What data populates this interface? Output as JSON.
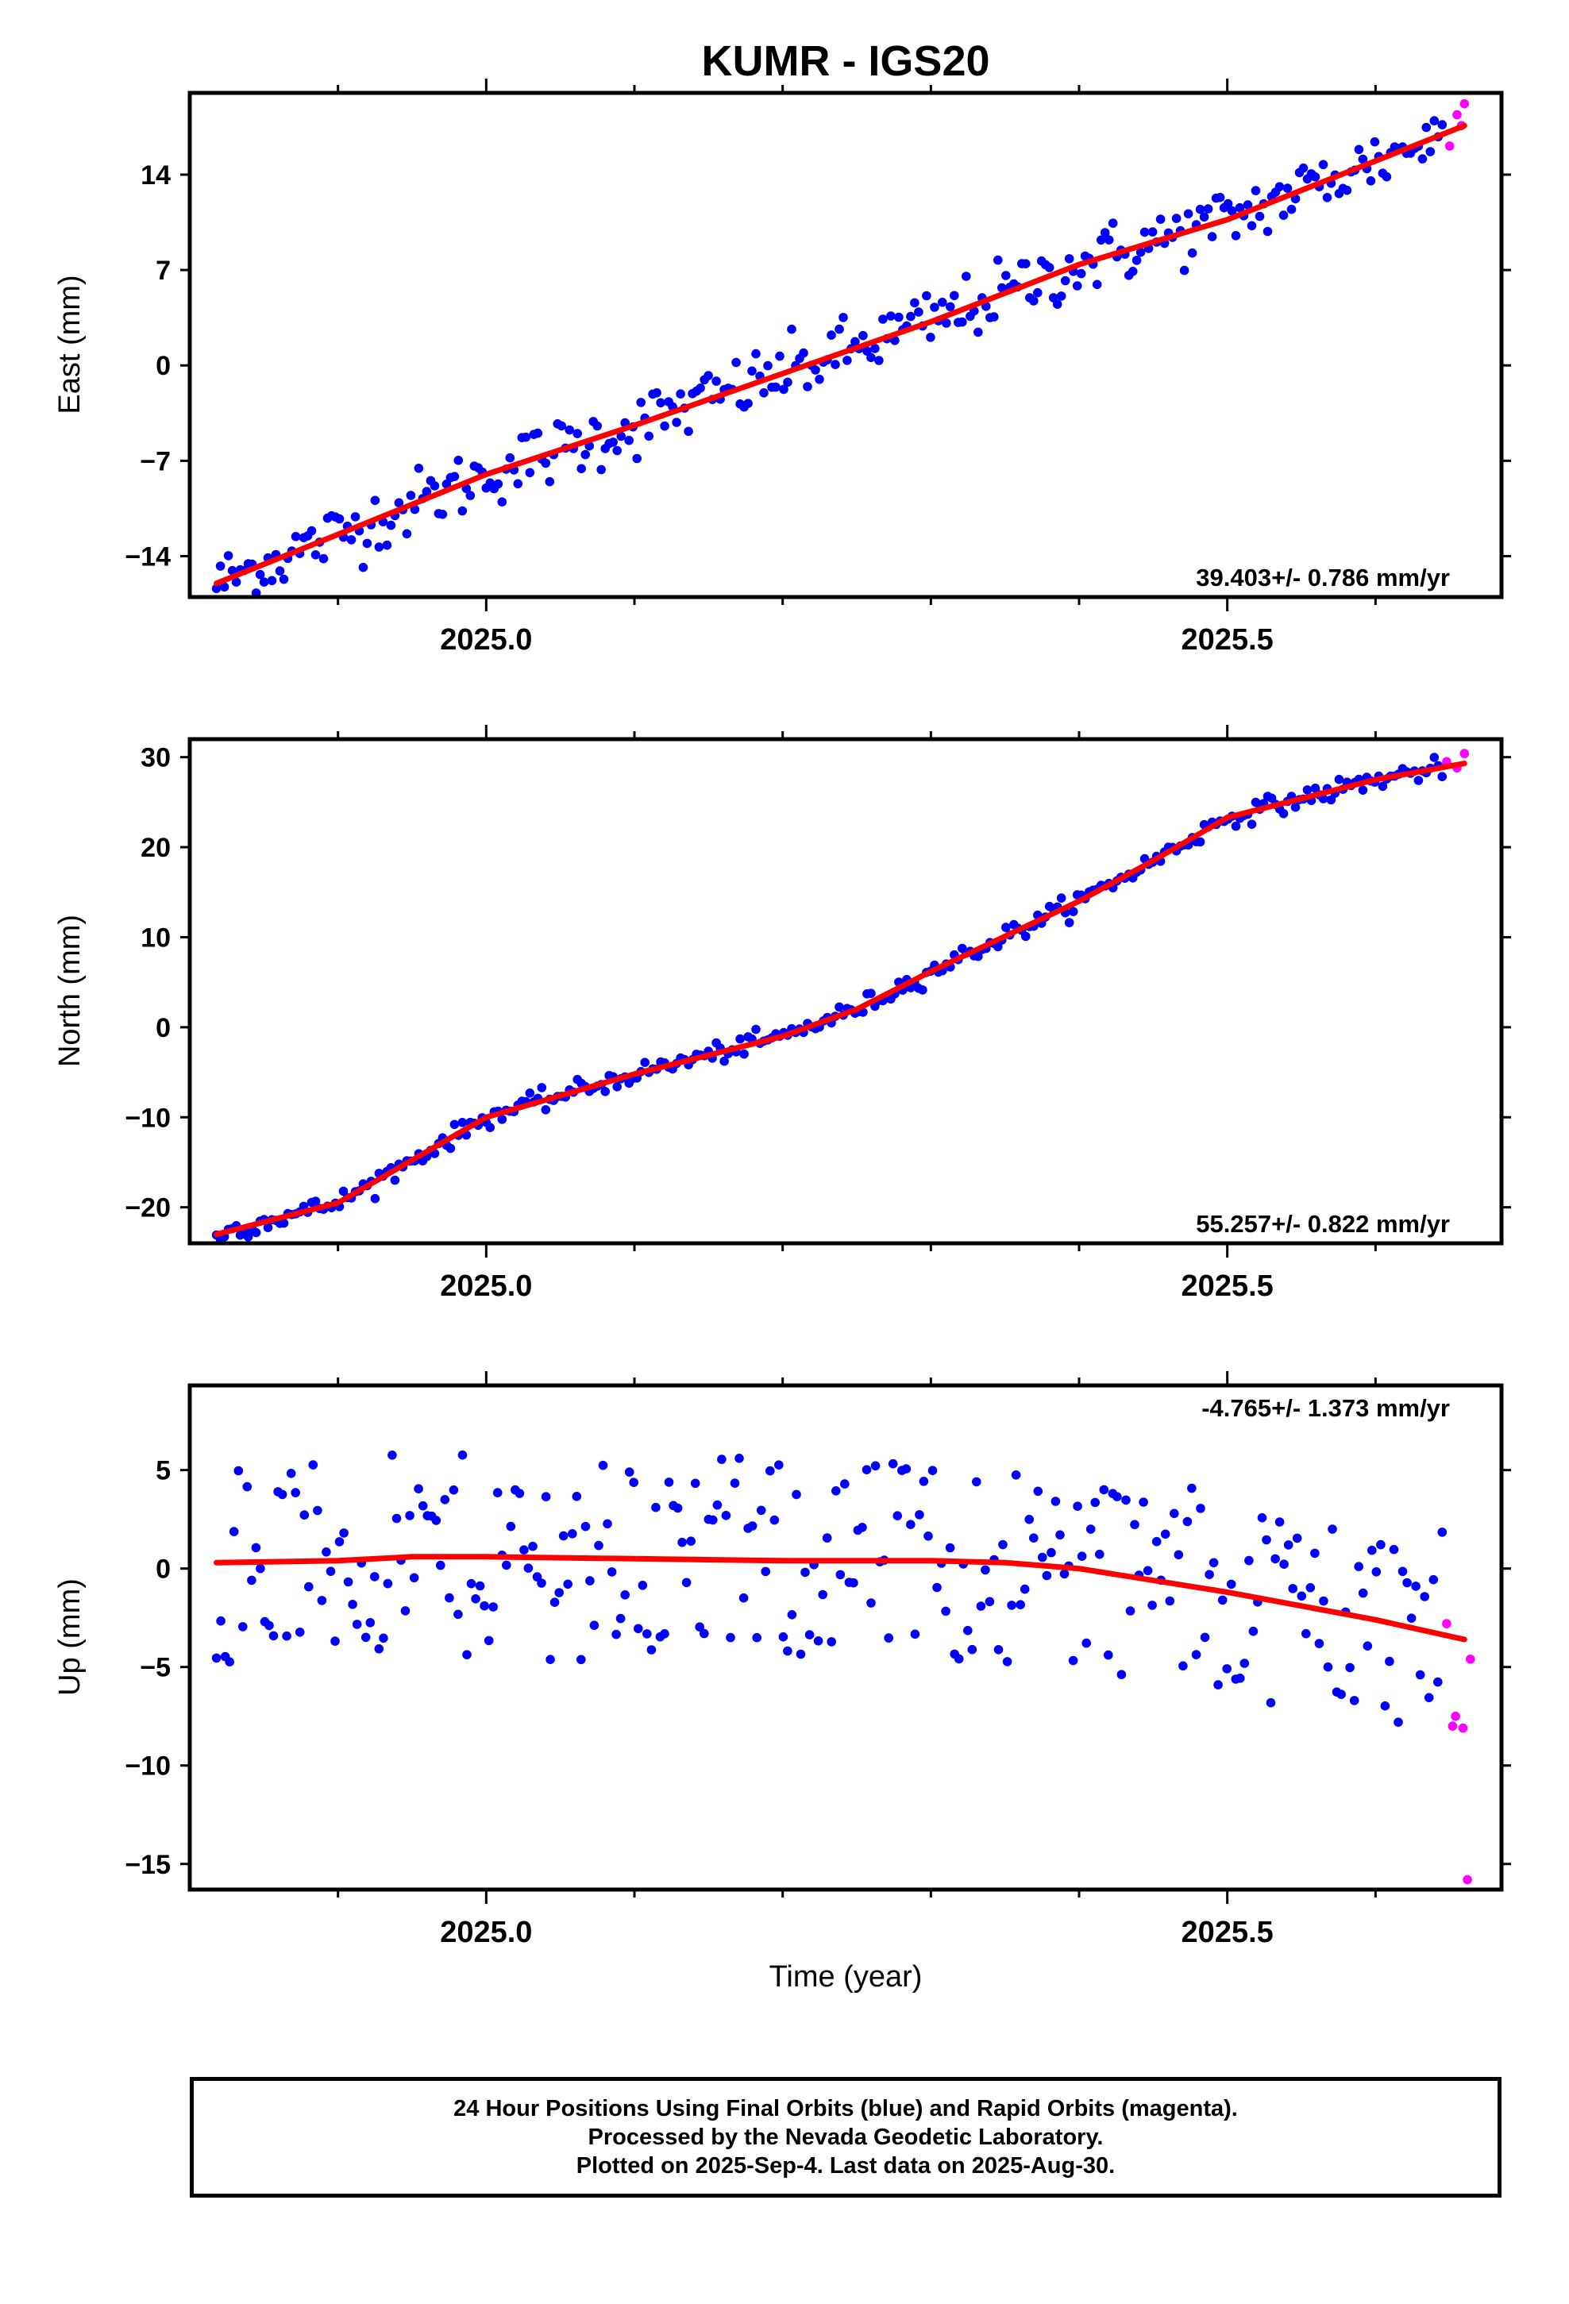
{
  "title": "KUMR - IGS20",
  "colors": {
    "final": "#0000ff",
    "rapid": "#ff00ff",
    "fit": "#ff0000"
  },
  "chart_data": [
    {
      "type": "scatter",
      "ylabel": "East (mm)",
      "xlabel": "",
      "xlim": [
        2024.8,
        2025.685
      ],
      "ylim": [
        -17,
        20
      ],
      "yticks": [
        -14,
        -7,
        0,
        7,
        14
      ],
      "xticks": [
        2025.0,
        2025.5
      ],
      "rate_label": "39.403+/- 0.786 mm/yr",
      "fit": [
        [
          2024.818,
          -16.0
        ],
        [
          2024.9,
          -12.4
        ],
        [
          2025.0,
          -8.0
        ],
        [
          2025.1,
          -4.4
        ],
        [
          2025.2,
          -0.6
        ],
        [
          2025.3,
          3.2
        ],
        [
          2025.4,
          7.4
        ],
        [
          2025.5,
          10.7
        ],
        [
          2025.6,
          15.0
        ],
        [
          2025.66,
          17.6
        ]
      ],
      "trend": {
        "x0": 2024.818,
        "y0": -15.5,
        "x1": 2025.66,
        "y1": 17.5
      },
      "scatter": 2.2,
      "n_points": 310,
      "rapid": [
        [
          2025.65,
          16.1
        ],
        [
          2025.655,
          18.4
        ],
        [
          2025.658,
          17.6
        ],
        [
          2025.66,
          19.2
        ]
      ]
    },
    {
      "type": "scatter",
      "ylabel": "North (mm)",
      "xlabel": "",
      "xlim": [
        2024.8,
        2025.685
      ],
      "ylim": [
        -24,
        32
      ],
      "yticks": [
        -20,
        -10,
        0,
        10,
        20,
        30
      ],
      "xticks": [
        2025.0,
        2025.5
      ],
      "rate_label": "55.257+/- 0.822 mm/yr",
      "fit": [
        [
          2024.818,
          -23.0
        ],
        [
          2024.9,
          -19.5
        ],
        [
          2025.0,
          -10.0
        ],
        [
          2025.1,
          -5.2
        ],
        [
          2025.2,
          -1.0
        ],
        [
          2025.25,
          2.0
        ],
        [
          2025.3,
          6.2
        ],
        [
          2025.4,
          14.0
        ],
        [
          2025.45,
          18.5
        ],
        [
          2025.5,
          23.3
        ],
        [
          2025.6,
          27.5
        ],
        [
          2025.66,
          29.3
        ]
      ],
      "trend": {
        "x0": 2024.818,
        "y0": -23.0,
        "x1": 2025.66,
        "y1": 29.3
      },
      "scatter": 1.0,
      "n_points": 310,
      "rapid": [
        [
          2025.648,
          29.5
        ],
        [
          2025.655,
          28.8
        ],
        [
          2025.66,
          30.4
        ]
      ]
    },
    {
      "type": "scatter",
      "ylabel": "Up (mm)",
      "xlabel": "Time (year)",
      "xlim": [
        2024.8,
        2025.685
      ],
      "ylim": [
        -16.3,
        9.3
      ],
      "yticks": [
        -15,
        -10,
        -5,
        0,
        5
      ],
      "xticks": [
        2025.0,
        2025.5
      ],
      "rate_label": "-4.765+/- 1.373 mm/yr",
      "fit": [
        [
          2024.818,
          0.3
        ],
        [
          2024.9,
          0.4
        ],
        [
          2024.95,
          0.6
        ],
        [
          2025.0,
          0.6
        ],
        [
          2025.1,
          0.5
        ],
        [
          2025.2,
          0.4
        ],
        [
          2025.3,
          0.4
        ],
        [
          2025.35,
          0.3
        ],
        [
          2025.4,
          0.0
        ],
        [
          2025.5,
          -1.2
        ],
        [
          2025.6,
          -2.6
        ],
        [
          2025.66,
          -3.6
        ]
      ],
      "trend": {
        "x0": 2024.818,
        "y0": 0.3,
        "x1": 2025.66,
        "y1": -3.6
      },
      "scatter": 3.6,
      "n_points": 280,
      "rapid": [
        [
          2025.648,
          -2.8
        ],
        [
          2025.652,
          -8.0
        ],
        [
          2025.654,
          -7.5
        ],
        [
          2025.659,
          -8.1
        ],
        [
          2025.664,
          -4.6
        ],
        [
          2025.662,
          -15.8
        ]
      ]
    }
  ],
  "footer": {
    "line1": "24 Hour Positions Using Final Orbits (blue) and Rapid Orbits (magenta).",
    "line2": "Processed by the Nevada Geodetic Laboratory.",
    "line3": "Plotted on 2025-Sep-4. Last data on 2025-Aug-30."
  }
}
